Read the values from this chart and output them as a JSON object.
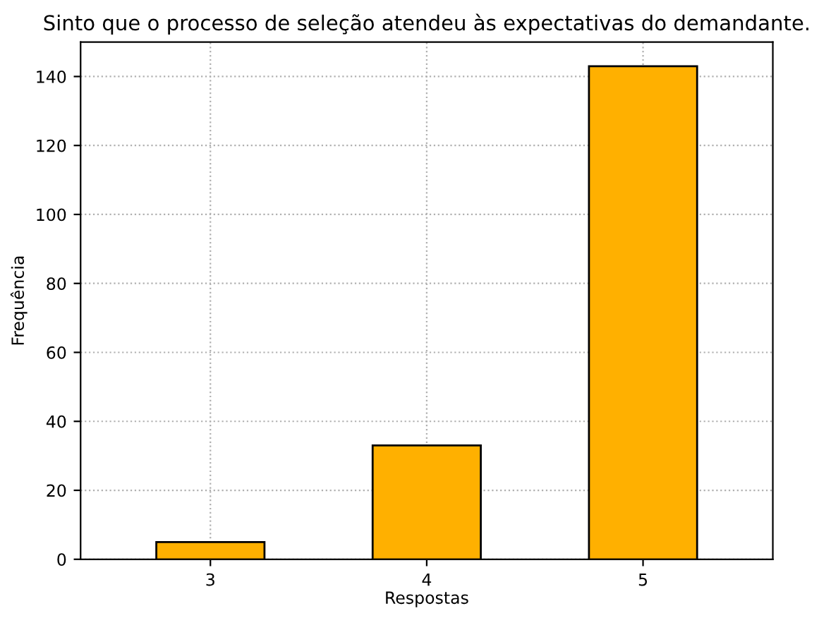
{
  "chart_data": {
    "type": "bar",
    "title": "Sinto que o processo de seleção atendeu às expectativas do demandante.",
    "xlabel": "Respostas",
    "ylabel": "Frequência",
    "categories": [
      "3",
      "4",
      "5"
    ],
    "values": [
      5,
      33,
      143
    ],
    "color": "#ffb000",
    "ylim": [
      0,
      150
    ],
    "yticks": [
      0,
      20,
      40,
      60,
      80,
      100,
      120,
      140
    ],
    "grid": true,
    "legend": false
  }
}
